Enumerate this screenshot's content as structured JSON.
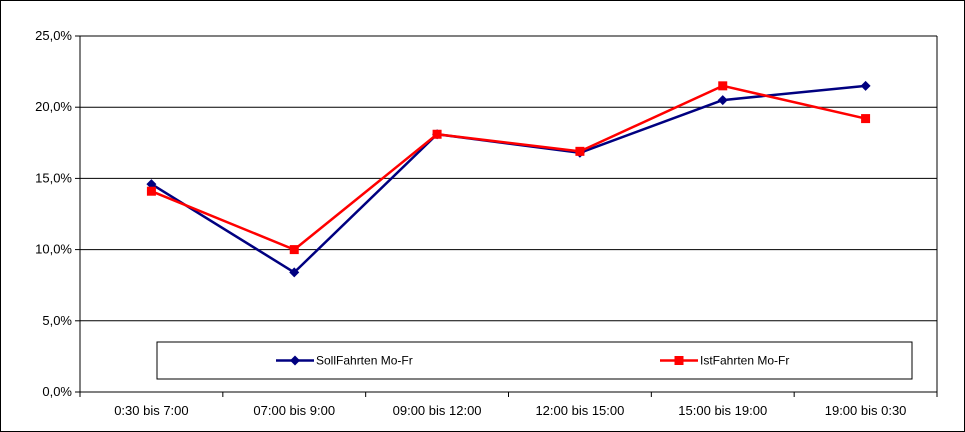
{
  "chart_data": {
    "type": "line",
    "title": "",
    "xlabel": "",
    "ylabel": "",
    "categories": [
      "0:30 bis 7:00",
      "07:00 bis 9:00",
      "09:00 bis 12:00",
      "12:00 bis 15:00",
      "15:00 bis 19:00",
      "19:00 bis 0:30"
    ],
    "ylim": [
      0,
      25
    ],
    "yticks": [
      "0,0%",
      "5,0%",
      "10,0%",
      "15,0%",
      "20,0%",
      "25,0%"
    ],
    "grid": true,
    "legend_position": "bottom",
    "series": [
      {
        "name": "SollFahrten Mo-Fr",
        "color": "#000080",
        "marker": "diamond",
        "values": [
          14.6,
          8.4,
          18.1,
          16.8,
          20.5,
          21.5
        ]
      },
      {
        "name": "IstFahrten Mo-Fr",
        "color": "#FF0000",
        "marker": "square",
        "values": [
          14.1,
          10.0,
          18.1,
          16.9,
          21.5,
          19.2
        ]
      }
    ]
  }
}
